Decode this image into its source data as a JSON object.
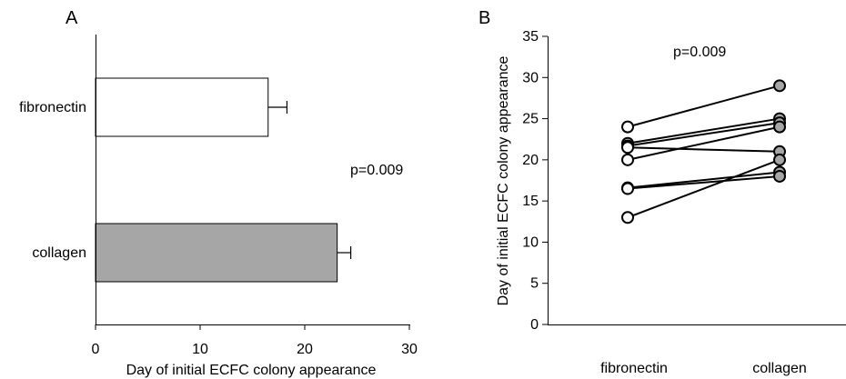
{
  "chart_data": [
    {
      "panel_label": "A",
      "type": "bar",
      "orientation": "horizontal",
      "categories": [
        "fibronectin",
        "collagen"
      ],
      "values": [
        16.5,
        23.1
      ],
      "errors": [
        1.8,
        1.3
      ],
      "colors": [
        "#ffffff",
        "#a6a6a6"
      ],
      "xlabel": "Day of initial ECFC colony appearance",
      "xlim": [
        0,
        30
      ],
      "xticks": [
        "0",
        "10",
        "20",
        "30"
      ],
      "annotation": "p=0.009",
      "grid": false
    },
    {
      "panel_label": "B",
      "type": "line",
      "categories": [
        "fibronectin",
        "collagen"
      ],
      "ylabel": "Day of initial ECFC colony appearance",
      "ylim": [
        0,
        35
      ],
      "yticks": [
        "0",
        "5",
        "10",
        "15",
        "20",
        "25",
        "30",
        "35"
      ],
      "annotation": "p=0.009",
      "marker_colors": [
        "#ffffff",
        "#a6a6a6"
      ],
      "series": [
        {
          "values": [
            24,
            29
          ]
        },
        {
          "values": [
            22,
            25
          ]
        },
        {
          "values": [
            21.7,
            24.5
          ]
        },
        {
          "values": [
            20,
            24
          ]
        },
        {
          "values": [
            21.5,
            21
          ]
        },
        {
          "values": [
            16.6,
            18.5
          ]
        },
        {
          "values": [
            16.5,
            18
          ]
        },
        {
          "values": [
            13,
            20
          ]
        }
      ],
      "grid": false
    }
  ]
}
